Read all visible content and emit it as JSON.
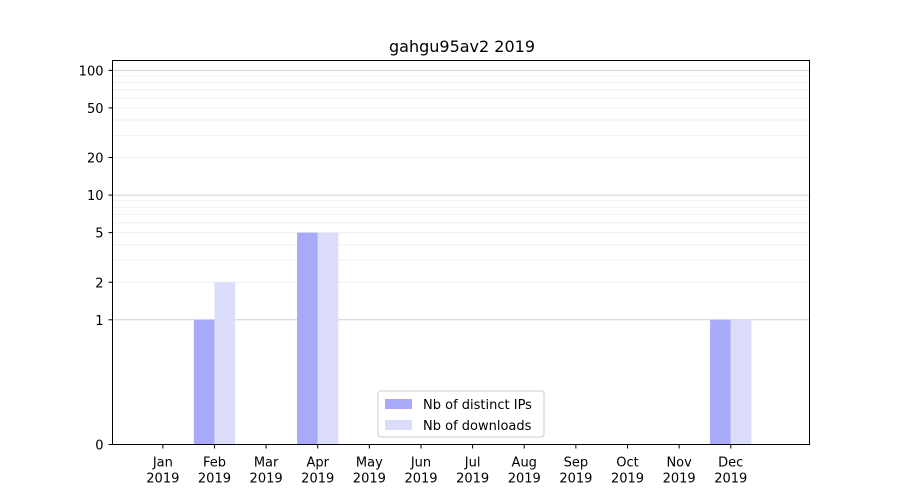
{
  "chart_data": {
    "type": "bar",
    "title": "gahgu95av2 2019",
    "xlabel": "",
    "ylabel": "",
    "yscale": "symlog",
    "ylim": [
      0,
      120
    ],
    "y_ticks": [
      0,
      1,
      2,
      5,
      10,
      20,
      50,
      100
    ],
    "y_tick_labels": [
      "0",
      "1",
      "2",
      "5",
      "10",
      "20",
      "50",
      "100"
    ],
    "categories": [
      "Jan\n2019",
      "Feb\n2019",
      "Mar\n2019",
      "Apr\n2019",
      "May\n2019",
      "Jun\n2019",
      "Jul\n2019",
      "Aug\n2019",
      "Sep\n2019",
      "Oct\n2019",
      "Nov\n2019",
      "Dec\n2019"
    ],
    "series": [
      {
        "name": "Nb of distinct IPs",
        "color": "#a9a9f9",
        "values": [
          0,
          1,
          0,
          5,
          0,
          0,
          0,
          0,
          0,
          0,
          0,
          1
        ]
      },
      {
        "name": "Nb of downloads",
        "color": "#dcdcfb",
        "values": [
          0,
          2,
          0,
          5,
          0,
          0,
          0,
          0,
          0,
          0,
          0,
          1
        ]
      }
    ],
    "legend_position": "bottom-center",
    "grid": true
  }
}
